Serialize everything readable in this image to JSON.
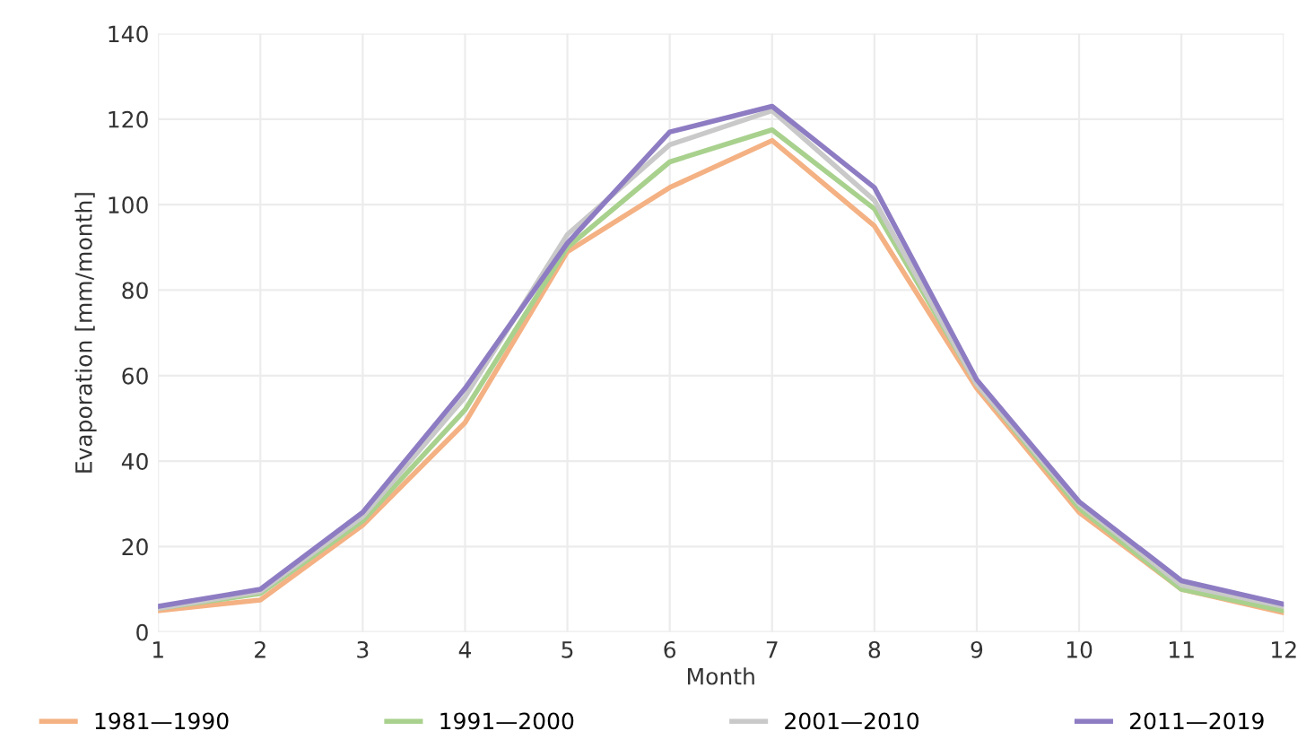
{
  "chart_data": {
    "type": "line",
    "xlabel": "Month",
    "ylabel": "Evaporation [mm/month]",
    "x": [
      1,
      2,
      3,
      4,
      5,
      6,
      7,
      8,
      9,
      10,
      11,
      12
    ],
    "series": [
      {
        "name": "1981—1990",
        "color": "#f4b183",
        "values": [
          5,
          7.5,
          25,
          49,
          89,
          104,
          115,
          95,
          57,
          28,
          10,
          4.5
        ]
      },
      {
        "name": "1991—2000",
        "color": "#a9d18e",
        "values": [
          5.5,
          9,
          26,
          52,
          90,
          110,
          117.5,
          99,
          58,
          29,
          10,
          5
        ]
      },
      {
        "name": "2001—2010",
        "color": "#c9c9c9",
        "values": [
          5.5,
          9.5,
          27,
          55,
          93,
          114,
          122,
          101,
          58,
          30,
          11,
          6
        ]
      },
      {
        "name": "2011—2019",
        "color": "#8e7cc3",
        "values": [
          6,
          10,
          28,
          57,
          91,
          117,
          123,
          104,
          59,
          30.5,
          12,
          6.5
        ]
      }
    ],
    "xlim": [
      1,
      12
    ],
    "xticks": [
      1,
      2,
      3,
      4,
      5,
      6,
      7,
      8,
      9,
      10,
      11,
      12
    ],
    "ylim": [
      0,
      140
    ],
    "yticks": [
      0,
      20,
      40,
      60,
      80,
      100,
      120,
      140
    ],
    "grid": true,
    "legend": "bottom",
    "marker": "none",
    "line_style": "solid"
  }
}
